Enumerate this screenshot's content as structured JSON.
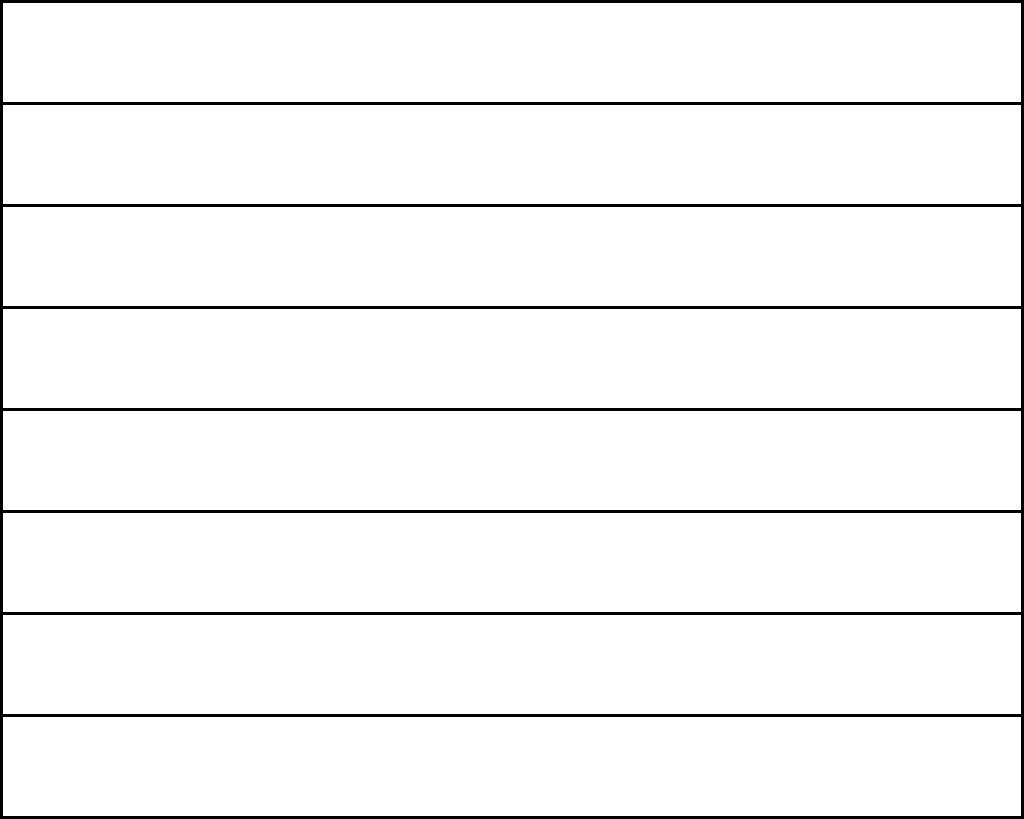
{
  "colors": {
    "border": "#000000",
    "fill": "#ffffff"
  }
}
